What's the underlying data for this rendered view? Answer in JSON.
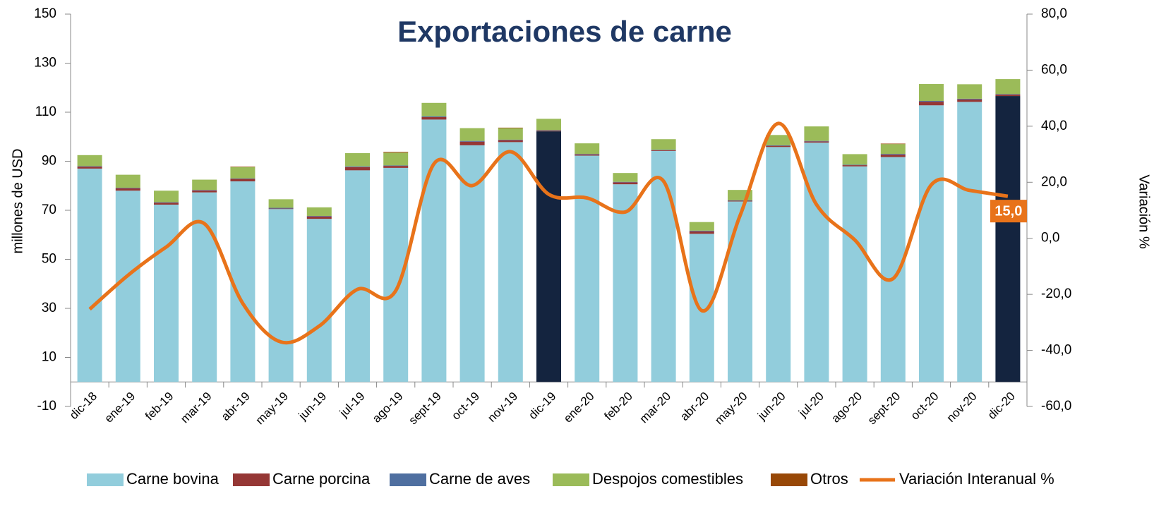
{
  "chart_data": {
    "type": "bar",
    "title": "Exportaciones de carne",
    "y_label": "millones de  USD",
    "y2_label": "Variación %",
    "categories": [
      "dic-18",
      "ene-19",
      "feb-19",
      "mar-19",
      "abr-19",
      "may-19",
      "jun-19",
      "jul-19",
      "ago-19",
      "sept-19",
      "oct-19",
      "nov-19",
      "dic-19",
      "ene-20",
      "feb-20",
      "mar-20",
      "abr-20",
      "may-20",
      "jun-20",
      "jul-20",
      "ago-20",
      "sept-20",
      "oct-20",
      "nov-20",
      "dic-20"
    ],
    "ylim": [
      -10,
      150
    ],
    "yticks": [
      -10,
      10,
      30,
      50,
      70,
      90,
      110,
      130,
      150
    ],
    "y2lim": [
      -60,
      80
    ],
    "y2ticks": [
      {
        "value": -60,
        "label": "-60,0"
      },
      {
        "value": -40,
        "label": "-40,0"
      },
      {
        "value": -20,
        "label": "-20,0"
      },
      {
        "value": 0,
        "label": "0,0"
      },
      {
        "value": 20,
        "label": "20,0"
      },
      {
        "value": 40,
        "label": "40,0"
      },
      {
        "value": 60,
        "label": "60,0"
      },
      {
        "value": 80,
        "label": "80,0"
      }
    ],
    "series": [
      {
        "name": "Carne bovina",
        "color": "#92cddc",
        "colors": [
          "#92cddc",
          "#92cddc",
          "#92cddc",
          "#92cddc",
          "#92cddc",
          "#92cddc",
          "#92cddc",
          "#92cddc",
          "#92cddc",
          "#92cddc",
          "#92cddc",
          "#92cddc",
          "#14243f",
          "#92cddc",
          "#92cddc",
          "#92cddc",
          "#92cddc",
          "#92cddc",
          "#92cddc",
          "#92cddc",
          "#92cddc",
          "#92cddc",
          "#92cddc",
          "#92cddc",
          "#14243f"
        ],
        "values": [
          87,
          78,
          72.3,
          77.3,
          81.8,
          70.5,
          66.5,
          86.3,
          87.3,
          107,
          96.5,
          97.8,
          102.2,
          92.3,
          80.6,
          94.2,
          60.4,
          73.6,
          95.8,
          97.6,
          87.9,
          91.7,
          112.8,
          114.2,
          116.6
        ]
      },
      {
        "name": "Carne porcina",
        "color": "#953735",
        "values": [
          0.8,
          1,
          0.8,
          0.8,
          1,
          0.2,
          1,
          1.3,
          0.8,
          1,
          1.5,
          0.8,
          0.3,
          0.5,
          0.8,
          0.3,
          1,
          0.3,
          0.5,
          0.5,
          0.5,
          1,
          1.5,
          1,
          0.6
        ]
      },
      {
        "name": "Carne de aves",
        "color": "#4f6fa0",
        "values": [
          0.2,
          0.2,
          0.2,
          0.2,
          0.2,
          0.3,
          0.2,
          0.3,
          0.2,
          0.3,
          0.3,
          0.2,
          0.2,
          0.2,
          0.2,
          0.2,
          0.3,
          0.2,
          0.2,
          0.2,
          0.2,
          0.3,
          0.3,
          0.3,
          0.2
        ]
      },
      {
        "name": "Despojos comestibles",
        "color": "#9bbb59",
        "values": [
          4.5,
          5.3,
          4.7,
          4.2,
          4.6,
          3.5,
          3.5,
          5.4,
          5.2,
          5.5,
          5.2,
          4.7,
          4.6,
          4.3,
          3.6,
          4.3,
          3.5,
          4.2,
          4.2,
          5.9,
          4.3,
          4,
          6.9,
          5.9,
          6.1
        ]
      },
      {
        "name": "Otros",
        "color": "#984807",
        "values": [
          0,
          0,
          0,
          0,
          0.2,
          0,
          0,
          0,
          0.3,
          0,
          0,
          0.2,
          0,
          0,
          0,
          0,
          0,
          0,
          0,
          0,
          0,
          0.2,
          0,
          0,
          0
        ]
      },
      {
        "name": "Variación Interanual %",
        "color": "#e8731a",
        "type": "line",
        "axis": "y2",
        "values": [
          -25.3,
          -13.2,
          -3.1,
          5.2,
          -23.2,
          -37,
          -31.3,
          -18.2,
          -18.7,
          26.6,
          18.8,
          30.9,
          15.7,
          14.4,
          9.4,
          20.4,
          -25.8,
          8.1,
          41,
          12,
          -0.6,
          -14.4,
          19.1,
          17.1,
          15
        ],
        "value_labels": [
          null,
          null,
          null,
          null,
          null,
          null,
          null,
          null,
          null,
          null,
          null,
          null,
          null,
          null,
          null,
          null,
          null,
          null,
          null,
          null,
          null,
          null,
          null,
          null,
          "15,0"
        ]
      }
    ]
  }
}
